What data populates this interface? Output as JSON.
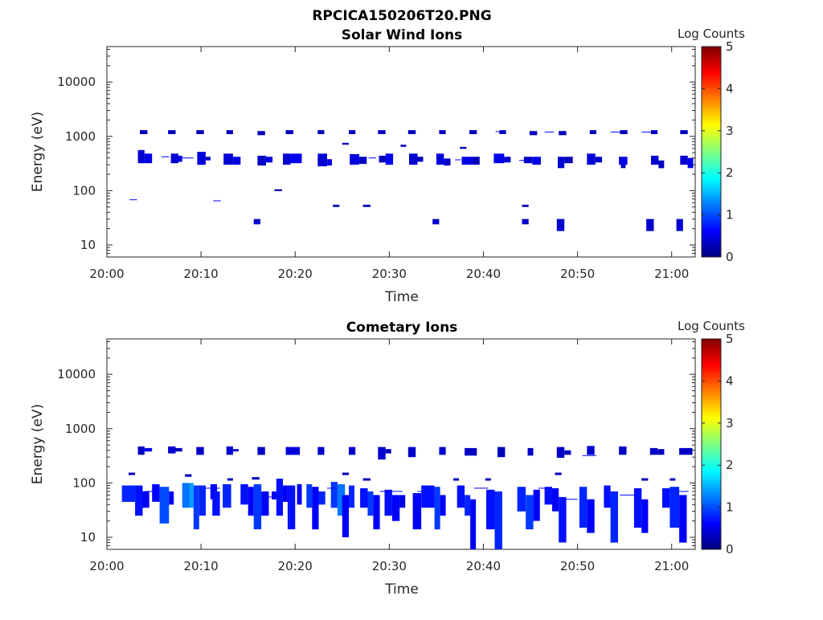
{
  "figure": {
    "title": "RPCICA150206T20.PNG"
  },
  "colors": {
    "colormap": [
      "#00007f",
      "#0000ff",
      "#007fff",
      "#00ffff",
      "#7fff7f",
      "#ffff00",
      "#ff7f00",
      "#ff0000",
      "#7f0000"
    ]
  },
  "chart_data": [
    {
      "type": "heatmap",
      "title": "Solar Wind Ions",
      "xlabel": "Time",
      "ylabel": "Energy (eV)",
      "x_ticks": [
        "20:00",
        "20:10",
        "20:20",
        "20:30",
        "20:40",
        "20:50",
        "21:00"
      ],
      "y_ticks": [
        "10",
        "100",
        "1000",
        "10000"
      ],
      "y_scale": "log",
      "ylim": [
        6,
        45000
      ],
      "xlim_minutes": [
        0,
        62.5
      ],
      "colorbar": {
        "label": "Log Counts",
        "ticks": [
          "0",
          "1",
          "2",
          "3",
          "4",
          "5"
        ],
        "range": [
          0,
          5
        ]
      },
      "cells": [
        [
          3.5,
          4.3,
          1100,
          1300,
          0.3
        ],
        [
          6.5,
          7.3,
          1100,
          1300,
          0.3
        ],
        [
          9.5,
          10.3,
          1100,
          1300,
          0.3
        ],
        [
          12.7,
          13.4,
          1100,
          1300,
          0.3
        ],
        [
          16.0,
          16.8,
          1050,
          1250,
          0.3
        ],
        [
          19.0,
          19.8,
          1100,
          1300,
          0.3
        ],
        [
          22.4,
          23.1,
          1100,
          1300,
          0.3
        ],
        [
          25.7,
          26.4,
          1100,
          1300,
          0.3
        ],
        [
          28.8,
          29.6,
          1100,
          1300,
          0.3
        ],
        [
          32.0,
          32.8,
          1100,
          1300,
          0.3
        ],
        [
          35.3,
          36.0,
          1100,
          1300,
          0.3
        ],
        [
          38.5,
          39.3,
          1100,
          1300,
          0.3
        ],
        [
          41.7,
          42.4,
          1100,
          1300,
          0.3
        ],
        [
          44.9,
          45.7,
          1050,
          1250,
          0.3
        ],
        [
          48.0,
          48.8,
          1050,
          1250,
          0.3
        ],
        [
          51.3,
          52.0,
          1100,
          1300,
          0.3
        ],
        [
          54.5,
          55.3,
          1100,
          1300,
          0.3
        ],
        [
          57.8,
          58.5,
          1100,
          1300,
          0.3
        ],
        [
          60.9,
          61.7,
          1100,
          1300,
          0.3
        ],
        [
          3.3,
          4.0,
          320,
          560,
          0.4
        ],
        [
          4.0,
          4.8,
          320,
          480,
          0.5
        ],
        [
          6.8,
          7.6,
          320,
          480,
          0.4
        ],
        [
          7.6,
          8.0,
          340,
          440,
          0.5
        ],
        [
          9.6,
          10.5,
          300,
          520,
          0.45
        ],
        [
          10.5,
          11.0,
          360,
          420,
          0.3
        ],
        [
          12.4,
          13.4,
          300,
          480,
          0.4
        ],
        [
          13.4,
          14.2,
          300,
          420,
          0.5
        ],
        [
          16.0,
          16.9,
          290,
          440,
          0.35
        ],
        [
          16.9,
          17.6,
          330,
          420,
          0.5
        ],
        [
          18.7,
          19.5,
          300,
          480,
          0.4
        ],
        [
          19.5,
          20.7,
          320,
          480,
          0.55
        ],
        [
          22.4,
          23.4,
          280,
          480,
          0.4
        ],
        [
          23.4,
          23.9,
          290,
          380,
          0.5
        ],
        [
          25.8,
          26.8,
          300,
          470,
          0.45
        ],
        [
          26.8,
          27.6,
          310,
          420,
          0.35
        ],
        [
          28.9,
          29.6,
          330,
          440,
          0.3
        ],
        [
          29.6,
          30.4,
          300,
          480,
          0.55
        ],
        [
          32.1,
          33.0,
          300,
          480,
          0.4
        ],
        [
          33.0,
          33.6,
          340,
          420,
          0.3
        ],
        [
          35.0,
          35.8,
          300,
          480,
          0.45
        ],
        [
          35.8,
          36.5,
          290,
          390,
          0.35
        ],
        [
          37.7,
          38.8,
          300,
          420,
          0.5
        ],
        [
          38.8,
          39.6,
          300,
          420,
          0.3
        ],
        [
          41.1,
          42.2,
          320,
          480,
          0.55
        ],
        [
          42.2,
          42.9,
          330,
          420,
          0.4
        ],
        [
          44.3,
          45.2,
          320,
          420,
          0.35
        ],
        [
          45.2,
          46.1,
          300,
          420,
          0.5
        ],
        [
          47.9,
          48.6,
          260,
          420,
          0.4
        ],
        [
          48.6,
          49.5,
          320,
          420,
          0.3
        ],
        [
          51.0,
          51.9,
          300,
          480,
          0.45
        ],
        [
          51.9,
          52.6,
          330,
          420,
          0.35
        ],
        [
          54.4,
          55.3,
          300,
          420,
          0.5
        ],
        [
          54.6,
          55.1,
          260,
          300,
          0.3
        ],
        [
          57.8,
          58.6,
          300,
          440,
          0.4
        ],
        [
          58.6,
          59.2,
          260,
          360,
          0.3
        ],
        [
          60.9,
          61.7,
          300,
          440,
          0.4
        ],
        [
          61.7,
          62.3,
          260,
          400,
          0.55
        ],
        [
          25.0,
          25.7,
          700,
          760,
          0.3
        ],
        [
          31.2,
          31.8,
          640,
          700,
          0.3
        ],
        [
          37.5,
          38.2,
          590,
          640,
          0.3
        ],
        [
          15.6,
          16.3,
          24,
          30,
          0.35
        ],
        [
          34.6,
          35.3,
          24,
          30,
          0.35
        ],
        [
          44.1,
          44.8,
          24,
          30,
          0.35
        ],
        [
          47.8,
          48.6,
          18,
          30,
          0.4
        ],
        [
          57.3,
          58.1,
          18,
          30,
          0.4
        ],
        [
          60.5,
          61.2,
          18,
          30,
          0.4
        ],
        [
          17.8,
          18.6,
          98,
          106,
          0.3
        ],
        [
          24.0,
          24.7,
          50,
          55,
          0.3
        ],
        [
          27.2,
          28.0,
          50,
          55,
          0.3
        ],
        [
          44.1,
          44.8,
          50,
          55,
          0.3
        ]
      ],
      "lines": [
        [
          2.4,
          3.2,
          68,
          0.6
        ],
        [
          11.3,
          12.1,
          65,
          0.6
        ],
        [
          5.8,
          6.6,
          420,
          0.6
        ],
        [
          8.0,
          9.2,
          400,
          0.6
        ],
        [
          27.8,
          28.6,
          400,
          0.6
        ],
        [
          37.0,
          37.6,
          370,
          0.6
        ],
        [
          43.8,
          44.6,
          360,
          0.6
        ],
        [
          46.5,
          47.5,
          1200,
          0.6
        ],
        [
          53.5,
          54.5,
          1200,
          0.6
        ],
        [
          56.8,
          57.8,
          1200,
          0.6
        ],
        [
          41.3,
          42.0,
          1220,
          0.6
        ]
      ]
    },
    {
      "type": "heatmap",
      "title": "Cometary Ions",
      "xlabel": "Time",
      "ylabel": "Energy (eV)",
      "x_ticks": [
        "20:00",
        "20:10",
        "20:20",
        "20:30",
        "20:40",
        "20:50",
        "21:00"
      ],
      "y_ticks": [
        "10",
        "100",
        "1000",
        "10000"
      ],
      "y_scale": "log",
      "ylim": [
        6,
        45000
      ],
      "xlim_minutes": [
        0,
        62.5
      ],
      "colorbar": {
        "label": "Log Counts",
        "ticks": [
          "0",
          "1",
          "2",
          "3",
          "4",
          "5"
        ],
        "range": [
          0,
          5
        ]
      },
      "cells": [
        [
          3.3,
          4.0,
          330,
          470,
          0.35
        ],
        [
          4.0,
          4.8,
          380,
          440,
          0.5
        ],
        [
          6.5,
          7.3,
          350,
          470,
          0.4
        ],
        [
          7.3,
          8.0,
          380,
          440,
          0.3
        ],
        [
          9.5,
          10.3,
          330,
          460,
          0.35
        ],
        [
          12.7,
          13.4,
          330,
          470,
          0.4
        ],
        [
          13.4,
          14.0,
          380,
          420,
          0.3
        ],
        [
          16.0,
          16.8,
          330,
          460,
          0.35
        ],
        [
          19.0,
          20.5,
          330,
          460,
          0.45
        ],
        [
          22.4,
          23.1,
          330,
          460,
          0.4
        ],
        [
          25.7,
          26.4,
          330,
          460,
          0.35
        ],
        [
          28.8,
          29.6,
          270,
          460,
          0.4
        ],
        [
          29.6,
          30.2,
          350,
          420,
          0.3
        ],
        [
          32.0,
          32.8,
          300,
          460,
          0.35
        ],
        [
          35.3,
          36.0,
          330,
          460,
          0.4
        ],
        [
          38.0,
          39.3,
          320,
          440,
          0.35
        ],
        [
          41.5,
          42.3,
          300,
          460,
          0.3
        ],
        [
          44.7,
          45.3,
          320,
          440,
          0.35
        ],
        [
          47.8,
          48.6,
          290,
          460,
          0.35
        ],
        [
          48.6,
          49.3,
          330,
          400,
          0.3
        ],
        [
          51.0,
          51.8,
          330,
          480,
          0.4
        ],
        [
          54.4,
          55.2,
          330,
          470,
          0.35
        ],
        [
          57.7,
          58.5,
          330,
          440,
          0.35
        ],
        [
          58.5,
          59.2,
          330,
          420,
          0.3
        ],
        [
          60.8,
          62.2,
          330,
          440,
          0.35
        ],
        [
          1.6,
          3.0,
          45,
          90,
          0.8
        ],
        [
          3.0,
          3.8,
          25,
          90,
          0.7
        ],
        [
          3.8,
          4.5,
          35,
          70,
          0.6
        ],
        [
          4.8,
          5.6,
          45,
          95,
          0.65
        ],
        [
          5.6,
          6.6,
          18,
          85,
          1.0
        ],
        [
          6.6,
          7.1,
          40,
          70,
          0.6
        ],
        [
          8.0,
          8.8,
          35,
          100,
          1.2
        ],
        [
          8.8,
          9.2,
          35,
          100,
          1.4
        ],
        [
          9.2,
          9.8,
          14,
          90,
          0.9
        ],
        [
          9.8,
          10.5,
          25,
          90,
          0.8
        ],
        [
          11.0,
          11.7,
          50,
          95,
          0.6
        ],
        [
          11.2,
          12.0,
          25,
          70,
          0.7
        ],
        [
          12.3,
          13.2,
          35,
          95,
          0.8
        ],
        [
          14.2,
          15.0,
          40,
          95,
          0.7
        ],
        [
          15.0,
          15.6,
          25,
          85,
          0.6
        ],
        [
          15.6,
          16.4,
          14,
          95,
          0.9
        ],
        [
          16.4,
          17.2,
          25,
          70,
          0.6
        ],
        [
          17.5,
          18.0,
          50,
          70,
          0.5
        ],
        [
          18.0,
          18.7,
          25,
          120,
          0.7
        ],
        [
          18.7,
          19.2,
          45,
          90,
          0.6
        ],
        [
          19.2,
          20.0,
          14,
          90,
          0.7
        ],
        [
          20.2,
          20.7,
          40,
          95,
          0.6
        ],
        [
          21.2,
          21.8,
          35,
          95,
          0.9
        ],
        [
          21.8,
          22.5,
          14,
          85,
          0.6
        ],
        [
          22.5,
          23.2,
          40,
          70,
          0.8
        ],
        [
          23.8,
          24.5,
          35,
          105,
          0.9
        ],
        [
          24.5,
          25.3,
          25,
          95,
          1.2
        ],
        [
          25.0,
          25.7,
          10,
          60,
          0.6
        ],
        [
          25.7,
          26.3,
          35,
          90,
          0.8
        ],
        [
          26.9,
          27.7,
          35,
          80,
          0.7
        ],
        [
          27.7,
          28.3,
          25,
          70,
          0.9
        ],
        [
          28.3,
          29.0,
          14,
          60,
          0.6
        ],
        [
          29.5,
          30.3,
          25,
          75,
          0.7
        ],
        [
          30.3,
          31.1,
          20,
          60,
          0.6
        ],
        [
          31.1,
          31.7,
          35,
          60,
          0.5
        ],
        [
          32.5,
          33.4,
          14,
          65,
          0.6
        ],
        [
          33.4,
          34.8,
          35,
          90,
          0.7
        ],
        [
          34.8,
          35.4,
          14,
          85,
          0.9
        ],
        [
          35.4,
          36.0,
          25,
          60,
          0.6
        ],
        [
          37.2,
          38.0,
          35,
          90,
          0.7
        ],
        [
          38.0,
          38.6,
          25,
          60,
          0.8
        ],
        [
          38.6,
          39.2,
          6,
          50,
          0.6
        ],
        [
          40.3,
          41.2,
          14,
          75,
          0.7
        ],
        [
          41.2,
          42.0,
          6,
          70,
          0.8
        ],
        [
          43.6,
          44.5,
          30,
          85,
          0.8
        ],
        [
          44.5,
          45.3,
          14,
          60,
          0.9
        ],
        [
          45.3,
          46.0,
          20,
          75,
          0.6
        ],
        [
          46.5,
          47.3,
          40,
          85,
          0.7
        ],
        [
          47.3,
          48.0,
          30,
          80,
          0.6
        ],
        [
          48.0,
          48.8,
          8,
          55,
          0.7
        ],
        [
          50.2,
          51.0,
          15,
          85,
          0.8
        ],
        [
          51.0,
          51.8,
          12,
          50,
          0.6
        ],
        [
          52.8,
          53.5,
          35,
          90,
          0.7
        ],
        [
          53.5,
          54.3,
          8,
          70,
          0.8
        ],
        [
          56.0,
          56.8,
          15,
          80,
          0.7
        ],
        [
          56.8,
          57.5,
          12,
          50,
          0.6
        ],
        [
          59.0,
          59.8,
          35,
          80,
          0.7
        ],
        [
          59.8,
          60.8,
          15,
          85,
          0.8
        ],
        [
          60.8,
          61.6,
          8,
          60,
          0.6
        ],
        [
          2.3,
          3.0,
          140,
          155,
          0.3
        ],
        [
          8.3,
          9.0,
          130,
          145,
          0.3
        ],
        [
          12.8,
          13.4,
          110,
          122,
          0.3
        ],
        [
          15.4,
          16.2,
          115,
          128,
          0.3
        ],
        [
          25.0,
          25.7,
          140,
          155,
          0.3
        ],
        [
          27.2,
          28.0,
          110,
          122,
          0.3
        ],
        [
          36.8,
          37.4,
          110,
          122,
          0.3
        ],
        [
          40.2,
          40.8,
          110,
          122,
          0.3
        ],
        [
          47.6,
          48.3,
          140,
          155,
          0.3
        ],
        [
          56.8,
          57.5,
          110,
          122,
          0.3
        ],
        [
          59.8,
          60.4,
          110,
          122,
          0.3
        ]
      ],
      "lines": [
        [
          4.0,
          5.5,
          70,
          0.6
        ],
        [
          10.4,
          12.0,
          80,
          0.6
        ],
        [
          17.0,
          18.6,
          55,
          0.6
        ],
        [
          23.4,
          24.4,
          80,
          0.6
        ],
        [
          29.0,
          31.4,
          70,
          0.6
        ],
        [
          33.0,
          34.0,
          70,
          0.6
        ],
        [
          39.0,
          40.5,
          80,
          0.6
        ],
        [
          45.8,
          47.0,
          80,
          0.6
        ],
        [
          48.8,
          50.0,
          50,
          0.6
        ],
        [
          54.5,
          56.0,
          60,
          0.6
        ],
        [
          60.5,
          61.8,
          70,
          0.6
        ],
        [
          50.5,
          52.0,
          320,
          0.6
        ]
      ]
    }
  ]
}
